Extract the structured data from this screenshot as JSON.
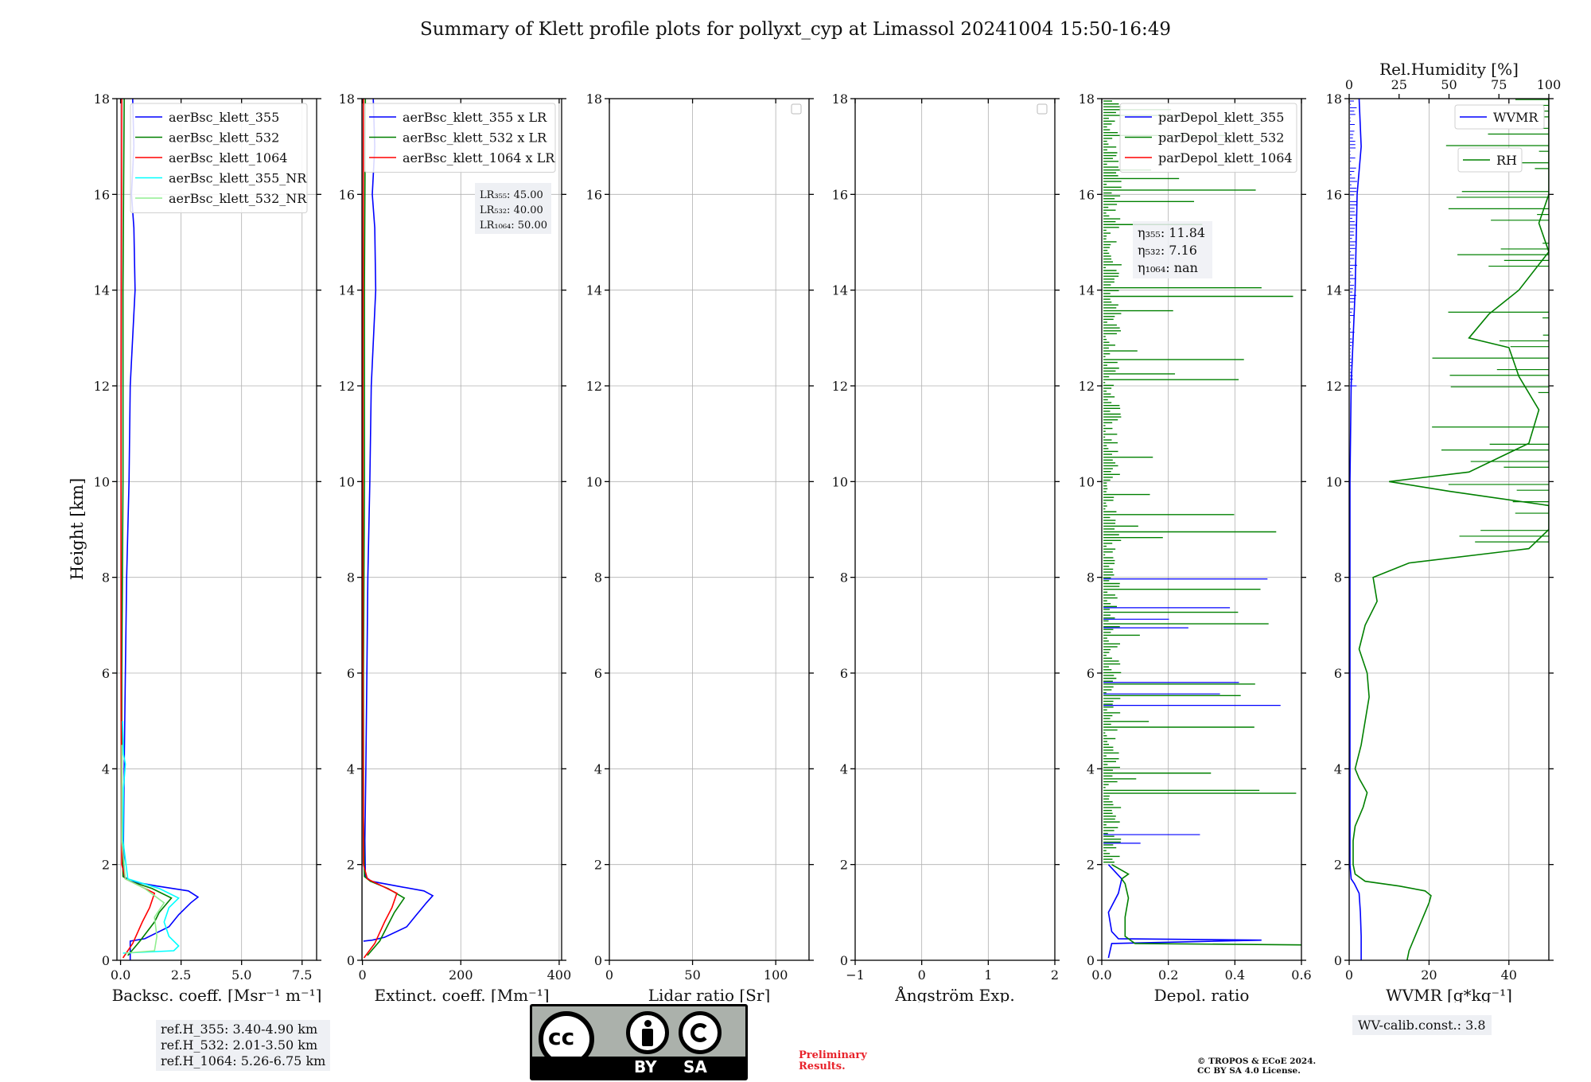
{
  "title": "Summary of Klett profile plots for pollyxt_cyp at Limassol 20241004 15:50-16:49",
  "y_label": "Height [km]",
  "y_ticks": [
    "0",
    "2",
    "4",
    "6",
    "8",
    "10",
    "12",
    "14",
    "16",
    "18"
  ],
  "colors": {
    "c355": "#0000ff",
    "c532": "#008000",
    "c1064": "#ff0000",
    "c355nr": "#00ffff",
    "c532nr": "#90ee90",
    "rh": "#008000",
    "wvmr": "#0000ff"
  },
  "chart_data": [
    {
      "type": "line",
      "id": "bsc",
      "xlabel": "Backsc. coeff. [Msr⁻¹ m⁻¹]",
      "xlim": [
        -0.15,
        8.1
      ],
      "ylim": [
        0,
        18
      ],
      "x_ticks": [
        0,
        2.5,
        5.0,
        7.5
      ],
      "x_tick_labels": [
        "0.0",
        "2.5",
        "5.0",
        "7.5"
      ],
      "legend": [
        "aerBsc_klett_355",
        "aerBsc_klett_532",
        "aerBsc_klett_1064",
        "aerBsc_klett_355_NR",
        "aerBsc_klett_532_NR"
      ],
      "series": [
        {
          "name": "aerBsc_klett_355",
          "color": "#0000ff",
          "points": [
            [
              0.4,
              0.0
            ],
            [
              0.4,
              0.4
            ],
            [
              1.0,
              0.45
            ],
            [
              2.0,
              0.7
            ],
            [
              2.4,
              0.95
            ],
            [
              2.9,
              1.2
            ],
            [
              3.2,
              1.32
            ],
            [
              2.8,
              1.45
            ],
            [
              1.5,
              1.55
            ],
            [
              0.4,
              1.65
            ],
            [
              0.15,
              1.75
            ],
            [
              0.12,
              2.5
            ],
            [
              0.15,
              4
            ],
            [
              0.2,
              6
            ],
            [
              0.25,
              8
            ],
            [
              0.35,
              10
            ],
            [
              0.4,
              12
            ],
            [
              0.6,
              14
            ],
            [
              0.55,
              15.3
            ],
            [
              0.45,
              16
            ],
            [
              0.55,
              17
            ],
            [
              0.5,
              18
            ]
          ]
        },
        {
          "name": "aerBsc_klett_532",
          "color": "#008000",
          "points": [
            [
              0.3,
              0.1
            ],
            [
              0.8,
              0.4
            ],
            [
              1.4,
              0.8
            ],
            [
              1.6,
              1.0
            ],
            [
              2.1,
              1.3
            ],
            [
              1.3,
              1.5
            ],
            [
              0.4,
              1.65
            ],
            [
              0.1,
              1.75
            ],
            [
              0.05,
              3
            ],
            [
              0.05,
              6
            ],
            [
              0.1,
              10
            ],
            [
              0.1,
              14
            ],
            [
              0.15,
              18
            ]
          ]
        },
        {
          "name": "aerBsc_klett_1064",
          "color": "#ff0000",
          "points": [
            [
              0.1,
              0.05
            ],
            [
              0.5,
              0.35
            ],
            [
              0.9,
              0.8
            ],
            [
              1.2,
              1.1
            ],
            [
              1.4,
              1.4
            ],
            [
              0.8,
              1.55
            ],
            [
              0.2,
              1.7
            ],
            [
              0.05,
              2
            ],
            [
              0.02,
              6
            ],
            [
              0.02,
              12
            ],
            [
              0.05,
              18
            ]
          ]
        },
        {
          "name": "aerBsc_klett_355_NR",
          "color": "#00ffff",
          "points": [
            [
              0.1,
              0.15
            ],
            [
              2.2,
              0.2
            ],
            [
              2.4,
              0.3
            ],
            [
              2.0,
              0.5
            ],
            [
              1.8,
              0.8
            ],
            [
              2.0,
              1.1
            ],
            [
              2.4,
              1.3
            ],
            [
              1.6,
              1.5
            ],
            [
              0.3,
              1.7
            ],
            [
              0.1,
              2.5
            ],
            [
              0.12,
              3.6
            ],
            [
              0.2,
              4.1
            ],
            [
              0.12,
              4.3
            ],
            [
              0.08,
              5
            ]
          ]
        },
        {
          "name": "aerBsc_klett_532_NR",
          "color": "#90ee90",
          "points": [
            [
              0.2,
              0.15
            ],
            [
              1.4,
              0.2
            ],
            [
              1.5,
              0.5
            ],
            [
              1.4,
              0.9
            ],
            [
              1.8,
              1.2
            ],
            [
              1.0,
              1.5
            ],
            [
              0.2,
              1.7
            ],
            [
              0.05,
              2.5
            ],
            [
              0.05,
              4.5
            ]
          ]
        }
      ]
    },
    {
      "type": "line",
      "id": "ext",
      "xlabel": "Extinct. coeff. [Mm⁻¹]",
      "xlim": [
        -1,
        405
      ],
      "ylim": [
        0,
        18
      ],
      "x_ticks": [
        0,
        200,
        400
      ],
      "x_tick_labels": [
        "0",
        "200",
        "400"
      ],
      "legend": [
        "aerBsc_klett_355 x LR",
        "aerBsc_klett_532 x LR",
        "aerBsc_klett_1064 x LR"
      ],
      "annotation": [
        "LR₃₅₅: 45.00",
        "LR₅₃₂: 40.00",
        "LR₁₀₆₄: 50.00"
      ],
      "series": [
        {
          "name": "aerBsc_klett_355 x LR",
          "color": "#0000ff",
          "points": [
            [
              2,
              0.4
            ],
            [
              20,
              0.42
            ],
            [
              45,
              0.48
            ],
            [
              90,
              0.7
            ],
            [
              110,
              0.95
            ],
            [
              130,
              1.2
            ],
            [
              143,
              1.35
            ],
            [
              125,
              1.45
            ],
            [
              70,
              1.55
            ],
            [
              18,
              1.65
            ],
            [
              6,
              1.75
            ],
            [
              5,
              2.5
            ],
            [
              7,
              4
            ],
            [
              9,
              6
            ],
            [
              11,
              8
            ],
            [
              15,
              10
            ],
            [
              18,
              12
            ],
            [
              27,
              14
            ],
            [
              25,
              15.3
            ],
            [
              20,
              16
            ],
            [
              25,
              17
            ],
            [
              22,
              18
            ]
          ]
        },
        {
          "name": "aerBsc_klett_532 x LR",
          "color": "#008000",
          "points": [
            [
              10,
              0.1
            ],
            [
              35,
              0.4
            ],
            [
              55,
              0.8
            ],
            [
              65,
              1.0
            ],
            [
              85,
              1.3
            ],
            [
              52,
              1.5
            ],
            [
              16,
              1.65
            ],
            [
              4,
              1.75
            ],
            [
              2,
              3
            ],
            [
              2,
              6
            ],
            [
              4,
              10
            ],
            [
              4,
              14
            ],
            [
              6,
              18
            ]
          ]
        },
        {
          "name": "aerBsc_klett_1064 x LR",
          "color": "#ff0000",
          "points": [
            [
              3,
              0.05
            ],
            [
              25,
              0.35
            ],
            [
              45,
              0.8
            ],
            [
              60,
              1.1
            ],
            [
              70,
              1.4
            ],
            [
              40,
              1.55
            ],
            [
              10,
              1.7
            ],
            [
              2,
              2
            ],
            [
              1,
              6
            ],
            [
              1,
              12
            ],
            [
              2,
              18
            ]
          ]
        }
      ]
    },
    {
      "type": "line",
      "id": "lr",
      "xlabel": "Lidar ratio [Sr]",
      "xlim": [
        0,
        120
      ],
      "ylim": [
        0,
        18
      ],
      "x_ticks": [
        0,
        50,
        100
      ],
      "x_tick_labels": [
        "0",
        "50",
        "100"
      ],
      "series": []
    },
    {
      "type": "line",
      "id": "ang",
      "xlabel": "Ångström Exp.",
      "xlim": [
        -1,
        2
      ],
      "ylim": [
        0,
        18
      ],
      "x_ticks": [
        -1,
        0,
        1,
        2
      ],
      "x_tick_labels": [
        "−1",
        "0",
        "1",
        "2"
      ],
      "series": []
    },
    {
      "type": "line",
      "id": "dep",
      "xlabel": "Depol. ratio",
      "xlim": [
        0,
        0.6
      ],
      "ylim": [
        0,
        18
      ],
      "x_ticks": [
        0,
        0.2,
        0.4,
        0.6
      ],
      "x_tick_labels": [
        "0.0",
        "0.2",
        "0.4",
        "0.6"
      ],
      "legend": [
        "parDepol_klett_355",
        "parDepol_klett_532",
        "parDepol_klett_1064"
      ],
      "annotation": [
        "η₃₅₅: 11.84",
        "η₅₃₂: 7.16",
        "η₁₀₆₄: nan"
      ],
      "series": [
        {
          "name": "parDepol_klett_355",
          "color": "#0000ff",
          "points": [
            [
              0.02,
              0.05
            ],
            [
              0.03,
              0.35
            ],
            [
              0.48,
              0.42
            ],
            [
              0.05,
              0.45
            ],
            [
              0.03,
              0.6
            ],
            [
              0.02,
              1.0
            ],
            [
              0.05,
              1.4
            ],
            [
              0.06,
              1.7
            ],
            [
              0.02,
              2.0
            ]
          ]
        },
        {
          "name": "parDepol_klett_532",
          "color": "#008000",
          "points": [
            [
              0.6,
              0.32
            ],
            [
              0.1,
              0.35
            ],
            [
              0.07,
              0.5
            ],
            [
              0.07,
              0.9
            ],
            [
              0.08,
              1.3
            ],
            [
              0.07,
              1.6
            ],
            [
              0.06,
              1.7
            ],
            [
              0.08,
              1.8
            ],
            [
              0.03,
              2.0
            ]
          ]
        }
      ]
    },
    {
      "type": "line",
      "id": "wv",
      "xlabel": "WVMR [g*kg⁻¹]",
      "top_label": "Rel.Humidity [%]",
      "xlim": [
        0,
        50
      ],
      "top_xlim": [
        0,
        100
      ],
      "ylim": [
        0,
        18
      ],
      "x_ticks": [
        0,
        20,
        40
      ],
      "x_tick_labels": [
        "0",
        "20",
        "40"
      ],
      "top_ticks": [
        0,
        25,
        50,
        75,
        100
      ],
      "top_tick_labels": [
        "0",
        "25",
        "50",
        "75",
        "100"
      ],
      "legend": [
        "WVMR",
        "RH"
      ],
      "annotation": [
        "WV-calib.const.: 3.8"
      ],
      "series": [
        {
          "name": "WVMR",
          "color": "#0000ff",
          "points": [
            [
              3,
              0
            ],
            [
              3,
              0.5
            ],
            [
              2.8,
              1.0
            ],
            [
              2.5,
              1.4
            ],
            [
              1.3,
              1.6
            ],
            [
              0.5,
              1.7
            ],
            [
              0.2,
              2
            ],
            [
              0.2,
              10
            ],
            [
              0.5,
              12
            ],
            [
              1.5,
              14
            ],
            [
              2.0,
              16
            ],
            [
              3.0,
              17
            ],
            [
              2.5,
              18
            ]
          ]
        },
        {
          "name": "RH",
          "color": "#008000",
          "axis": "top",
          "points": [
            [
              29,
              0
            ],
            [
              30,
              0.2
            ],
            [
              33,
              0.5
            ],
            [
              35,
              0.7
            ],
            [
              38,
              1.0
            ],
            [
              40,
              1.2
            ],
            [
              41,
              1.35
            ],
            [
              38,
              1.45
            ],
            [
              25,
              1.55
            ],
            [
              8,
              1.65
            ],
            [
              3,
              1.8
            ],
            [
              2,
              2
            ],
            [
              2,
              2.5
            ],
            [
              3,
              2.8
            ],
            [
              7,
              3.2
            ],
            [
              9,
              3.5
            ],
            [
              5,
              3.8
            ],
            [
              3,
              4
            ],
            [
              6,
              4.5
            ],
            [
              8,
              5
            ],
            [
              10,
              5.5
            ],
            [
              9,
              6
            ],
            [
              5,
              6.5
            ],
            [
              8,
              7
            ],
            [
              14,
              7.5
            ],
            [
              12,
              8
            ],
            [
              30,
              8.3
            ],
            [
              90,
              8.6
            ],
            [
              100,
              9.0
            ],
            [
              100,
              9.5
            ],
            [
              50,
              9.8
            ],
            [
              20,
              10.0
            ],
            [
              60,
              10.2
            ],
            [
              90,
              10.8
            ],
            [
              95,
              11.5
            ],
            [
              85,
              12.2
            ],
            [
              80,
              12.8
            ],
            [
              60,
              13.0
            ],
            [
              70,
              13.5
            ],
            [
              85,
              14.0
            ],
            [
              100,
              14.8
            ],
            [
              95,
              15.4
            ],
            [
              100,
              16.0
            ],
            [
              100,
              17.0
            ],
            [
              100,
              18
            ]
          ]
        }
      ]
    }
  ],
  "footer": {
    "ref_lines": [
      "ref.H_355: 3.40-4.90 km",
      "ref.H_532: 2.01-3.50 km",
      "ref.H_1064: 5.26-6.75 km"
    ],
    "wv_calib": "WV-calib.const.: 3.8",
    "preliminary": [
      "Preliminary",
      "Results."
    ],
    "copyright": [
      "© TROPOS & ECoE 2024.",
      "CC BY SA 4.0 License."
    ],
    "cc_by": "BY",
    "cc_sa": "SA",
    "cc_text": "cc"
  }
}
